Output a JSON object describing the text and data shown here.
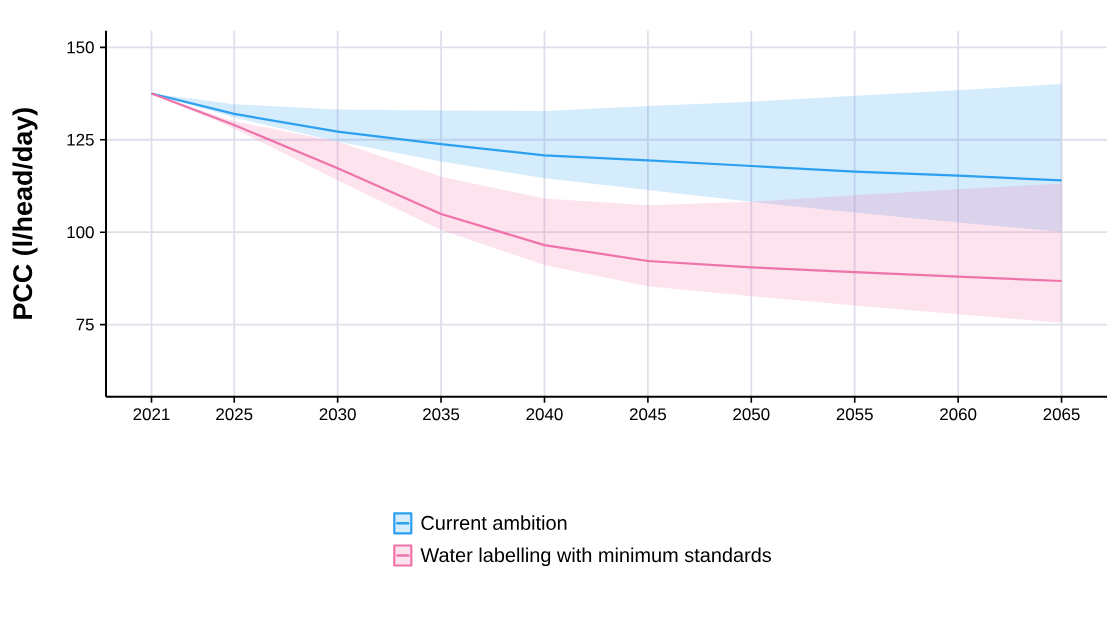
{
  "chart_data": {
    "type": "line",
    "ylabel": "PCC (l/head/day)",
    "x": [
      2021,
      2025,
      2030,
      2035,
      2040,
      2045,
      2050,
      2055,
      2060,
      2065
    ],
    "series": [
      {
        "name": "Current ambition",
        "color": "#2ca0f0",
        "values": [
          137.5,
          132.0,
          127.2,
          123.8,
          120.8,
          119.4,
          117.9,
          116.4,
          115.3,
          114.0
        ],
        "lower": [
          137.5,
          131.0,
          124.5,
          119.1,
          114.6,
          111.4,
          108.2,
          105.3,
          102.6,
          100.1
        ],
        "upper": [
          137.5,
          134.6,
          133.2,
          132.9,
          132.8,
          134.1,
          135.3,
          136.9,
          138.4,
          140.1
        ]
      },
      {
        "name": "Water labelling with minimum standards",
        "color": "#ef72a9",
        "values": [
          137.5,
          129.0,
          117.3,
          104.9,
          96.5,
          92.2,
          90.5,
          89.2,
          88.0,
          86.8
        ],
        "lower": [
          137.5,
          128.0,
          114.0,
          100.6,
          91.1,
          85.4,
          82.7,
          80.2,
          77.8,
          75.5
        ],
        "upper": [
          137.5,
          130.0,
          124.5,
          115.0,
          109.1,
          107.3,
          108.2,
          110.0,
          111.6,
          113.2
        ]
      }
    ],
    "xlim": [
      2018.8,
      2067.2
    ],
    "ylim": [
      55.5,
      154.5
    ],
    "xticks": [
      2021,
      2025,
      2030,
      2035,
      2040,
      2045,
      2050,
      2055,
      2060,
      2065
    ],
    "yticks": [
      75,
      100,
      125,
      150
    ],
    "grid": true,
    "legend": "bottom",
    "line_style": "solid"
  }
}
